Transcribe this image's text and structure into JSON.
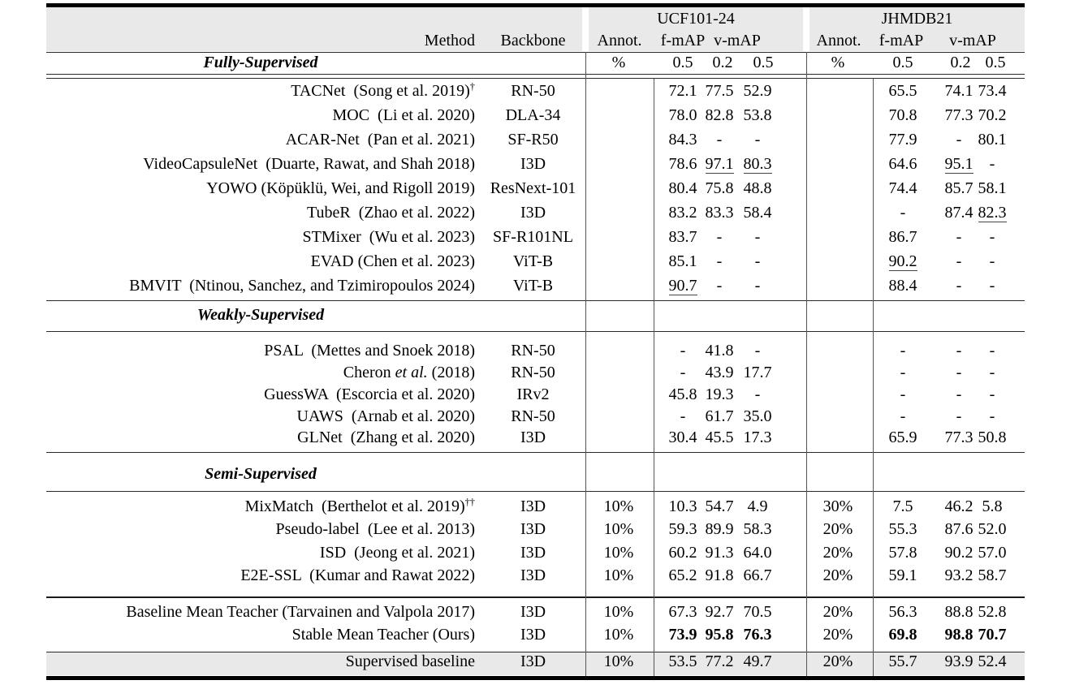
{
  "header": {
    "group1": "UCF101-24",
    "group2": "JHMDB21",
    "cols": {
      "method": "Method",
      "backbone": "Backbone",
      "annot": "Annot.",
      "fmap": "f-mAP",
      "vmap": "v-mAP"
    },
    "sub": {
      "pct": "%",
      "f": "0.5",
      "v2": "0.2",
      "v5": "0.5"
    }
  },
  "sections": [
    {
      "label": "Fully-Supervised",
      "rows": [
        {
          "method": [
            {
              "t": "TACNet  (Song et al. 2019)"
            },
            {
              "t": "†",
              "sup": true
            }
          ],
          "backbone": "RN-50",
          "cells": [
            "",
            "72.1",
            "77.5",
            "52.9",
            "",
            "65.5",
            "74.1",
            "73.4"
          ]
        },
        {
          "method": "MOC  (Li et al. 2020)",
          "backbone": "DLA-34",
          "cells": [
            "",
            "78.0",
            "82.8",
            "53.8",
            "",
            "70.8",
            "77.3",
            "70.2"
          ]
        },
        {
          "method": "ACAR-Net  (Pan et al. 2021)",
          "backbone": "SF-R50",
          "cells": [
            "",
            "84.3",
            "-",
            "-",
            "",
            "77.9",
            "-",
            "80.1"
          ]
        },
        {
          "method": "VideoCapsuleNet  (Duarte, Rawat, and Shah 2018)",
          "backbone": "I3D",
          "cells": [
            "",
            "78.6",
            "97.1",
            "80.3",
            "",
            "64.6",
            "95.1",
            "-"
          ],
          "flags": [
            "",
            "",
            "u",
            "u",
            "",
            "",
            "u",
            ""
          ]
        },
        {
          "method": "YOWO (Köpüklü, Wei, and Rigoll 2019)",
          "backbone": "ResNext-101",
          "cells": [
            "",
            "80.4",
            "75.8",
            "48.8",
            "",
            "74.4",
            "85.7",
            "58.1"
          ]
        },
        {
          "method": "TubeR  (Zhao et al. 2022)",
          "backbone": "I3D",
          "cells": [
            "",
            "83.2",
            "83.3",
            "58.4",
            "",
            "-",
            "87.4",
            "82.3"
          ],
          "flags": [
            "",
            "",
            "",
            "",
            "",
            "",
            "",
            "u"
          ]
        },
        {
          "method": "STMixer  (Wu et al. 2023)",
          "backbone": "SF-R101NL",
          "cells": [
            "",
            "83.7",
            "-",
            "-",
            "",
            "86.7",
            "-",
            "-"
          ]
        },
        {
          "method": "EVAD (Chen et al. 2023)",
          "backbone": "ViT-B",
          "cells": [
            "",
            "85.1",
            "-",
            "-",
            "",
            "90.2",
            "-",
            "-"
          ],
          "flags": [
            "",
            "",
            "",
            "",
            "",
            "u",
            "",
            ""
          ]
        },
        {
          "method": "BMVIT  (Ntinou, Sanchez, and Tzimiropoulos 2024)",
          "backbone": "ViT-B",
          "cells": [
            "",
            "90.7",
            "-",
            "-",
            "",
            "88.4",
            "-",
            "-"
          ],
          "flags": [
            "",
            "u",
            "",
            "",
            "",
            "",
            "",
            ""
          ]
        }
      ]
    },
    {
      "label": "Weakly-Supervised",
      "rows": [
        {
          "method": "PSAL  (Mettes and Snoek 2018)",
          "backbone": "RN-50",
          "cells": [
            "",
            "-",
            "41.8",
            "-",
            "",
            "-",
            "-",
            "-"
          ]
        },
        {
          "method": [
            {
              "t": "Cheron "
            },
            {
              "t": "et al.",
              "i": true
            },
            {
              "t": " (2018)"
            }
          ],
          "backbone": "RN-50",
          "cells": [
            "",
            "-",
            "43.9",
            "17.7",
            "",
            "-",
            "-",
            "-"
          ]
        },
        {
          "method": "GuessWA  (Escorcia et al. 2020)",
          "backbone": "IRv2",
          "cells": [
            "",
            "45.8",
            "19.3",
            "-",
            "",
            "-",
            "-",
            "-"
          ]
        },
        {
          "method": "UAWS  (Arnab et al. 2020)",
          "backbone": "RN-50",
          "cells": [
            "",
            "-",
            "61.7",
            "35.0",
            "",
            "-",
            "-",
            "-"
          ]
        },
        {
          "method": "GLNet  (Zhang et al. 2020)",
          "backbone": "I3D",
          "cells": [
            "",
            "30.4",
            "45.5",
            "17.3",
            "",
            "65.9",
            "77.3",
            "50.8"
          ]
        }
      ]
    },
    {
      "label": "Semi-Supervised",
      "rows": [
        {
          "method": [
            {
              "t": "MixMatch  (Berthelot et al. 2019)"
            },
            {
              "t": "††",
              "sup": true
            }
          ],
          "backbone": "I3D",
          "cells": [
            "10%",
            "10.3",
            "54.7",
            "4.9",
            "30%",
            "7.5",
            "46.2",
            "5.8"
          ]
        },
        {
          "method": "Pseudo-label  (Lee et al. 2013)",
          "backbone": "I3D",
          "cells": [
            "10%",
            "59.3",
            "89.9",
            "58.3",
            "20%",
            "55.3",
            "87.6",
            "52.0"
          ]
        },
        {
          "method": "ISD  (Jeong et al. 2021)",
          "backbone": "I3D",
          "cells": [
            "10%",
            "60.2",
            "91.3",
            "64.0",
            "20%",
            "57.8",
            "90.2",
            "57.0"
          ]
        },
        {
          "method": "E2E-SSL  (Kumar and Rawat 2022)",
          "backbone": "I3D",
          "cells": [
            "10%",
            "65.2",
            "91.8",
            "66.7",
            "20%",
            "59.1",
            "93.2",
            "58.7"
          ]
        }
      ]
    }
  ],
  "footer": {
    "rows": [
      {
        "method": "Baseline Mean Teacher (Tarvainen and Valpola 2017)",
        "backbone": "I3D",
        "cells": [
          "10%",
          "67.3",
          "92.7",
          "70.5",
          "20%",
          "56.3",
          "88.8",
          "52.8"
        ]
      },
      {
        "method": "Stable Mean Teacher (Ours)",
        "backbone": "I3D",
        "cells": [
          "10%",
          "73.9",
          "95.8",
          "76.3",
          "20%",
          "69.8",
          "98.8",
          "70.7"
        ],
        "flags": [
          "",
          "b",
          "b",
          "b",
          "",
          "b",
          "b",
          "b"
        ]
      }
    ]
  },
  "gray_row": {
    "method": "Supervised baseline",
    "backbone": "I3D",
    "cells": [
      "10%",
      "53.5",
      "77.2",
      "49.7",
      "20%",
      "55.7",
      "93.9",
      "52.4"
    ]
  },
  "colors": {
    "header_bg": "#e9e9e9",
    "rule_black": "#000000",
    "rule_gray": "#555555"
  }
}
